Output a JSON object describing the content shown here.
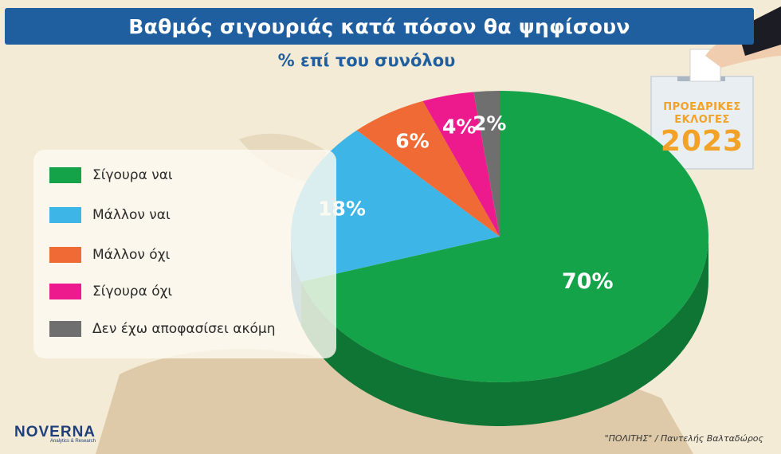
{
  "title": "Βαθμός σιγουριάς κατά πόσον θα ψηφίσουν",
  "subtitle": "% επί του συνόλου",
  "badge": {
    "line1": "ΠΡΟΕΔΡΙΚΕΣ",
    "line2": "ΕΚΛΟΓΕΣ",
    "year": "2023"
  },
  "logo": {
    "main": "NOVERNA",
    "sub": "Analytics & Research"
  },
  "credit": "\"ΠΟΛΙΤΗΣ\" / Παντελής Βαλταδώρος",
  "colors": {
    "title_bg": "#1f5fa0",
    "accent": "#f2a227"
  },
  "chart_data": {
    "type": "pie",
    "unit": "%",
    "labels": [
      "Σίγουρα ναι",
      "Μάλλον ναι",
      "Μάλλον όχι",
      "Σίγουρα όχι",
      "Δεν έχω αποφασίσει ακόμη"
    ],
    "values": [
      70,
      18,
      6,
      4,
      2
    ],
    "value_labels": [
      "70%",
      "18%",
      "6%",
      "4%",
      "2%"
    ],
    "colors": [
      "#15a34a",
      "#3db5e6",
      "#f06a35",
      "#ec1a8c",
      "#6f6f6f"
    ],
    "legend_position": "left"
  }
}
